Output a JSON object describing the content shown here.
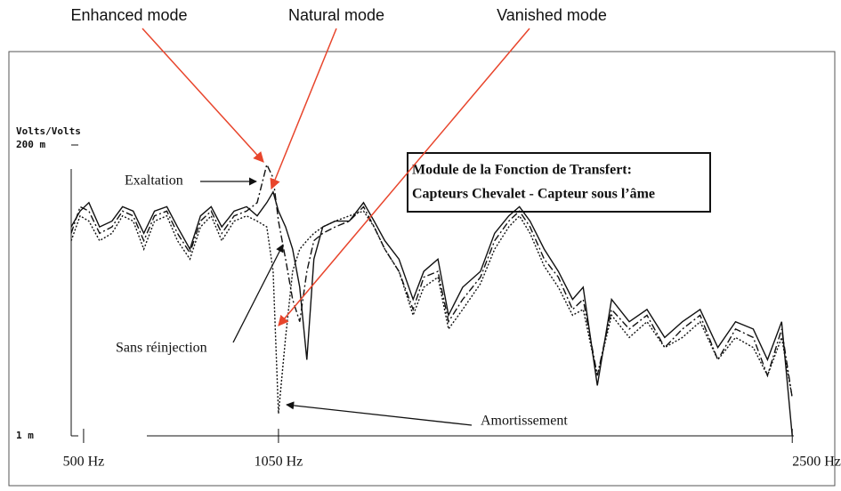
{
  "chart_data": {
    "type": "line",
    "title": "Module de la Fonction de Transfert:",
    "subtitle": "Capteurs Chevalet - Capteur sous l’âme",
    "annotations": [
      "Enhanced mode",
      "Natural mode",
      "Vanished mode"
    ],
    "ylabel": "Volts/Volts",
    "log_y": true,
    "x": [
      465,
      490,
      515,
      545,
      580,
      610,
      640,
      670,
      700,
      735,
      765,
      800,
      830,
      860,
      890,
      925,
      960,
      990,
      1017,
      1035,
      1050,
      1070,
      1090,
      1110,
      1130,
      1150,
      1175,
      1210,
      1250,
      1290,
      1320,
      1350,
      1390,
      1430,
      1460,
      1500,
      1530,
      1570,
      1620,
      1660,
      1700,
      1730,
      1760,
      1800,
      1840,
      1880,
      1910,
      1950,
      1990,
      2040,
      2090,
      2140,
      2190,
      2240,
      2290,
      2340,
      2390,
      2430,
      2470,
      2500
    ],
    "xlim": [
      465,
      2512
    ],
    "xticks": [
      {
        "value": 500,
        "label": "500 Hz"
      },
      {
        "value": 1050,
        "label": "1050 Hz"
      },
      {
        "value": 2500,
        "label": "2500 Hz"
      }
    ],
    "ylim": [
      0.001,
      0.2
    ],
    "yticks": [
      {
        "value": 0.2,
        "label": "200 m"
      },
      {
        "value": 0.001,
        "label": "1 m"
      }
    ],
    "series": [
      {
        "name": "Sans réinjection",
        "color": "#111111",
        "style": "solid",
        "values": [
          0.045,
          0.06,
          0.07,
          0.045,
          0.05,
          0.065,
          0.06,
          0.04,
          0.06,
          0.065,
          0.045,
          0.03,
          0.055,
          0.065,
          0.045,
          0.06,
          0.065,
          0.055,
          0.07,
          0.085,
          0.06,
          0.045,
          0.03,
          0.015,
          0.004,
          0.025,
          0.045,
          0.05,
          0.05,
          0.07,
          0.05,
          0.035,
          0.025,
          0.012,
          0.02,
          0.025,
          0.009,
          0.015,
          0.02,
          0.04,
          0.055,
          0.065,
          0.05,
          0.03,
          0.02,
          0.012,
          0.015,
          0.0025,
          0.012,
          0.008,
          0.01,
          0.006,
          0.008,
          0.01,
          0.005,
          0.008,
          0.007,
          0.004,
          0.008,
          0.001
        ]
      },
      {
        "name": "Exaltation",
        "color": "#111111",
        "style": "dashdot",
        "values": [
          0.04,
          0.065,
          0.06,
          0.04,
          0.045,
          0.06,
          0.055,
          0.035,
          0.055,
          0.06,
          0.04,
          0.028,
          0.05,
          0.06,
          0.04,
          0.055,
          0.06,
          0.07,
          0.14,
          0.11,
          0.05,
          0.025,
          0.012,
          0.008,
          0.02,
          0.035,
          0.04,
          0.045,
          0.05,
          0.065,
          0.045,
          0.03,
          0.02,
          0.01,
          0.018,
          0.02,
          0.008,
          0.012,
          0.018,
          0.035,
          0.05,
          0.06,
          0.045,
          0.025,
          0.018,
          0.01,
          0.012,
          0.003,
          0.01,
          0.007,
          0.009,
          0.005,
          0.007,
          0.009,
          0.004,
          0.007,
          0.006,
          0.003,
          0.007,
          0.002
        ]
      },
      {
        "name": "Amortissement",
        "color": "#111111",
        "style": "dotted",
        "values": [
          0.035,
          0.055,
          0.05,
          0.035,
          0.04,
          0.055,
          0.05,
          0.03,
          0.05,
          0.055,
          0.035,
          0.025,
          0.045,
          0.055,
          0.035,
          0.05,
          0.055,
          0.05,
          0.045,
          0.02,
          0.0015,
          0.006,
          0.02,
          0.03,
          0.035,
          0.04,
          0.045,
          0.05,
          0.055,
          0.06,
          0.045,
          0.03,
          0.02,
          0.009,
          0.015,
          0.018,
          0.007,
          0.01,
          0.016,
          0.03,
          0.045,
          0.055,
          0.04,
          0.022,
          0.015,
          0.009,
          0.01,
          0.003,
          0.009,
          0.006,
          0.008,
          0.005,
          0.006,
          0.008,
          0.004,
          0.006,
          0.005,
          0.003,
          0.006,
          0.002
        ]
      }
    ]
  }
}
